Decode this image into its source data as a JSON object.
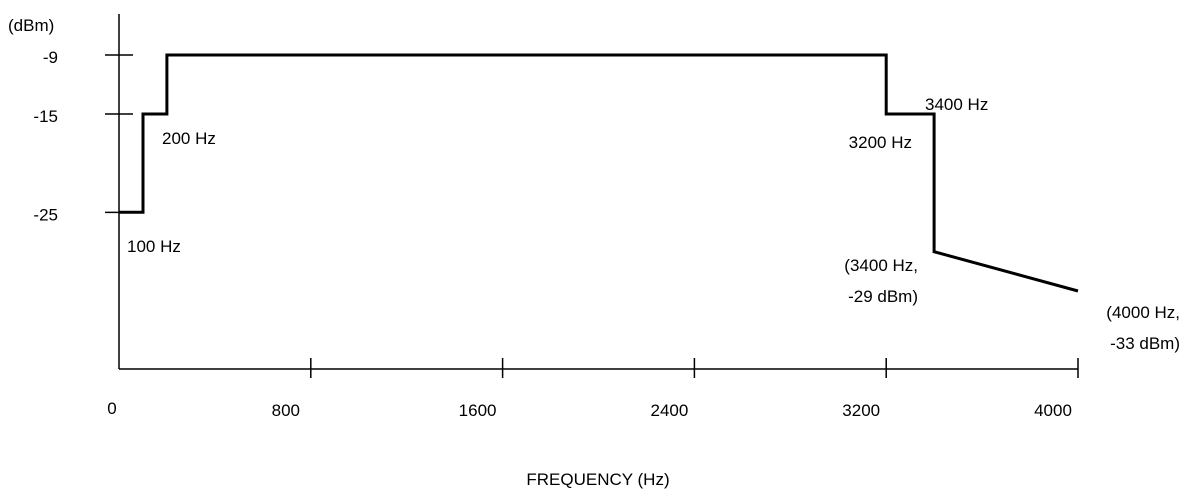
{
  "chart_data": {
    "type": "line",
    "ylabel": "(dBm)",
    "xlabel": "FREQUENCY (Hz)",
    "xlim": [
      0,
      4000
    ],
    "ylim": [
      -38,
      -3
    ],
    "x_ticks": [
      0,
      800,
      1600,
      2400,
      3200,
      4000
    ],
    "x_tick_labels": [
      "0",
      "800",
      "1600",
      "2400",
      "3200",
      "4000"
    ],
    "y_ticks": [
      -9,
      -15,
      -25
    ],
    "y_tick_labels": [
      "-9",
      "-15",
      "-25"
    ],
    "grid": false,
    "series": [
      {
        "points": [
          [
            0,
            -25
          ],
          [
            100,
            -25
          ],
          [
            100,
            -15
          ],
          [
            200,
            -15
          ],
          [
            200,
            -9
          ],
          [
            3200,
            -9
          ],
          [
            3200,
            -15
          ],
          [
            3400,
            -15
          ],
          [
            3400,
            -29
          ],
          [
            4000,
            -33
          ]
        ]
      }
    ],
    "annotations": [
      {
        "key": "a100",
        "text": "100 Hz"
      },
      {
        "key": "a200",
        "text": "200 Hz"
      },
      {
        "key": "a3200",
        "text": "3200 Hz"
      },
      {
        "key": "a3400",
        "text": "3400 Hz"
      },
      {
        "key": "a3400b",
        "text": "(3400 Hz,"
      },
      {
        "key": "a3400c",
        "text": "-29 dBm)"
      },
      {
        "key": "a4000",
        "text": "(4000 Hz,"
      },
      {
        "key": "a4000b",
        "text": "-33 dBm)"
      }
    ]
  }
}
